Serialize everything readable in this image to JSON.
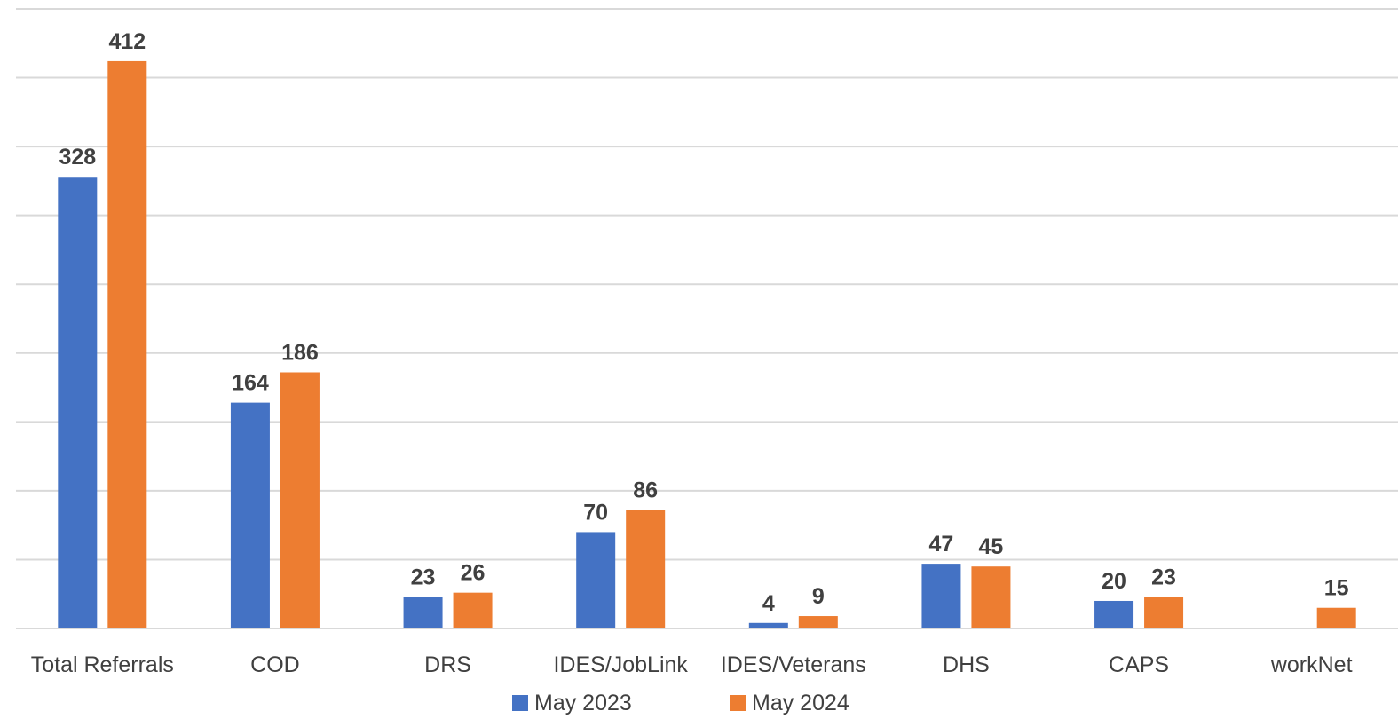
{
  "chart_data": {
    "type": "bar",
    "categories": [
      "Total Referrals",
      "COD",
      "DRS",
      "IDES/JobLink",
      "IDES/Veterans",
      "DHS",
      "CAPS",
      "workNet"
    ],
    "series": [
      {
        "name": "May 2023",
        "color": "#4472c4",
        "values": [
          328,
          164,
          23,
          70,
          4,
          47,
          20,
          null
        ]
      },
      {
        "name": "May 2024",
        "color": "#ed7d31",
        "values": [
          412,
          186,
          26,
          86,
          9,
          45,
          23,
          15
        ]
      }
    ],
    "ylim": [
      0,
      450
    ],
    "grid_step": 50,
    "grid": true,
    "legend": "bottom"
  }
}
